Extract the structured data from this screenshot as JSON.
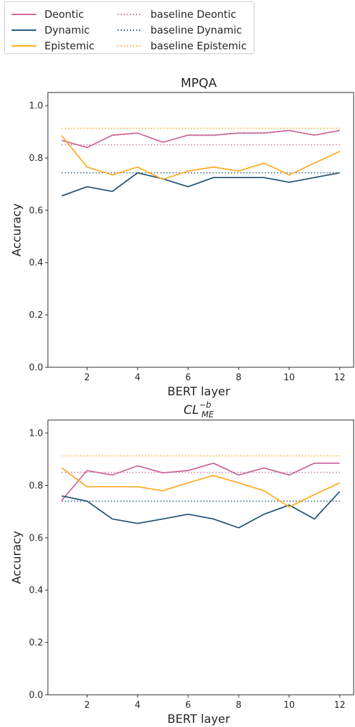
{
  "legend": {
    "items": [
      {
        "label": "Deontic",
        "color": "#cc6699",
        "style": "solid"
      },
      {
        "label": "Dynamic",
        "color": "#225577",
        "style": "solid"
      },
      {
        "label": "Epistemic",
        "color": "#ffaa22",
        "style": "solid"
      },
      {
        "label": "baseline Deontic",
        "color": "#cc6699",
        "style": "dotted"
      },
      {
        "label": "baseline Dynamic",
        "color": "#225577",
        "style": "dotted"
      },
      {
        "label": "baseline Epistemic",
        "color": "#ffaa22",
        "style": "dotted"
      }
    ]
  },
  "chart_data": [
    {
      "type": "line",
      "title": "MPQA",
      "xlabel": "BERT layer",
      "ylabel": "Accuracy",
      "x": [
        1,
        2,
        3,
        4,
        5,
        6,
        7,
        8,
        9,
        10,
        11,
        12
      ],
      "xticks": [
        2,
        4,
        6,
        8,
        10,
        12
      ],
      "yticks": [
        0.0,
        0.2,
        0.4,
        0.6,
        0.8,
        1.0
      ],
      "ytick_labels": [
        "0.0",
        "0.2",
        "0.4",
        "0.6",
        "0.8",
        "1.0"
      ],
      "xlim": [
        0.45,
        12.55
      ],
      "ylim": [
        0.0,
        1.05
      ],
      "series": [
        {
          "name": "Deontic",
          "color": "#cc6699",
          "values": [
            0.867,
            0.84,
            0.887,
            0.895,
            0.86,
            0.887,
            0.887,
            0.895,
            0.895,
            0.905,
            0.887,
            0.905
          ]
        },
        {
          "name": "Dynamic",
          "color": "#225577",
          "values": [
            0.655,
            0.69,
            0.672,
            0.743,
            0.72,
            0.69,
            0.725,
            0.725,
            0.725,
            0.707,
            0.725,
            0.743
          ]
        },
        {
          "name": "Epistemic",
          "color": "#ffaa22",
          "values": [
            0.885,
            0.765,
            0.735,
            0.765,
            0.718,
            0.75,
            0.765,
            0.75,
            0.78,
            0.735,
            0.78,
            0.825
          ]
        }
      ],
      "baselines": [
        {
          "name": "baseline Deontic",
          "color": "#cc6699",
          "value": 0.85
        },
        {
          "name": "baseline Dynamic",
          "color": "#225577",
          "value": 0.743
        },
        {
          "name": "baseline Epistemic",
          "color": "#ffaa22",
          "value": 0.913
        }
      ]
    },
    {
      "type": "line",
      "title": "CL",
      "title_subscript": "ME",
      "title_superscript": "−b",
      "xlabel": "BERT layer",
      "ylabel": "Accuracy",
      "x": [
        1,
        2,
        3,
        4,
        5,
        6,
        7,
        8,
        9,
        10,
        11,
        12
      ],
      "xticks": [
        2,
        4,
        6,
        8,
        10,
        12
      ],
      "yticks": [
        0.0,
        0.2,
        0.4,
        0.6,
        0.8,
        1.0
      ],
      "ytick_labels": [
        "0.0",
        "0.2",
        "0.4",
        "0.6",
        "0.8",
        "1.0"
      ],
      "xlim": [
        0.45,
        12.55
      ],
      "ylim": [
        0.0,
        1.05
      ],
      "series": [
        {
          "name": "Deontic",
          "color": "#cc6699",
          "values": [
            0.743,
            0.857,
            0.84,
            0.875,
            0.848,
            0.857,
            0.885,
            0.84,
            0.867,
            0.84,
            0.885,
            0.885
          ]
        },
        {
          "name": "Dynamic",
          "color": "#225577",
          "values": [
            0.76,
            0.74,
            0.672,
            0.655,
            0.672,
            0.69,
            0.672,
            0.638,
            0.69,
            0.725,
            0.672,
            0.777
          ]
        },
        {
          "name": "Epistemic",
          "color": "#ffaa22",
          "values": [
            0.867,
            0.795,
            0.795,
            0.795,
            0.78,
            0.81,
            0.838,
            0.81,
            0.78,
            0.718,
            0.765,
            0.81
          ]
        }
      ],
      "baselines": [
        {
          "name": "baseline Deontic",
          "color": "#cc6699",
          "value": 0.85
        },
        {
          "name": "baseline Dynamic",
          "color": "#225577",
          "value": 0.74
        },
        {
          "name": "baseline Epistemic",
          "color": "#ffaa22",
          "value": 0.913
        }
      ]
    }
  ]
}
